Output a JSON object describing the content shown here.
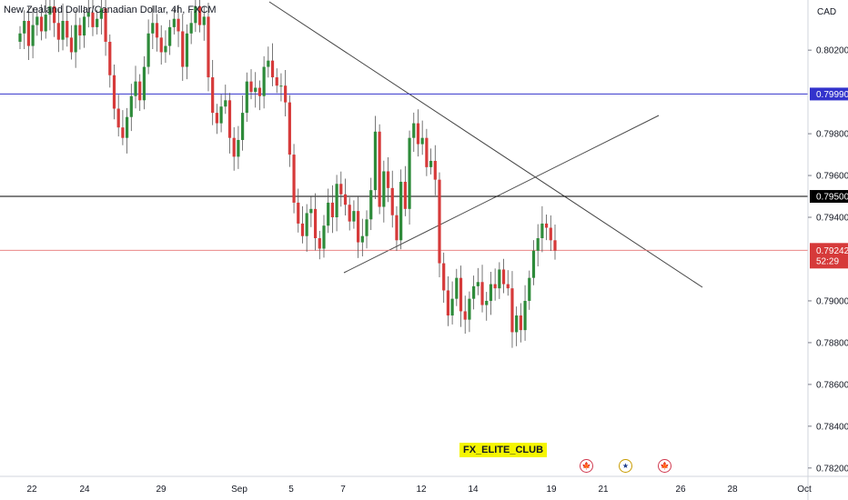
{
  "header": {
    "title": "New Zealand Dollar/Canadian Dollar, 4h, FXCM"
  },
  "watermark": "FX_ELITE_CLUB",
  "events": [
    {
      "name": "canada-flag-event",
      "glyph": "🍁",
      "date": "Sep 20"
    },
    {
      "name": "australia-flag-event",
      "glyph": "★",
      "date": "Sep 21"
    },
    {
      "name": "canada-flag-event-2",
      "glyph": "🍁",
      "date": "Sep 23"
    }
  ],
  "colors": {
    "up": "#26a69a",
    "up_body": "#2e8b3a",
    "down": "#d63a3a",
    "resistance_line": "#3333cc",
    "support_line": "#000000",
    "price_line": "#e57373",
    "trendline": "#444444"
  },
  "chart_data": {
    "type": "candlestick",
    "symbol": "New Zealand Dollar/Canadian Dollar",
    "interval": "4h",
    "source": "FXCM",
    "currency": "CAD",
    "y_ticks": [
      "0.80200",
      "0.79800",
      "0.79600",
      "0.79400",
      "0.79000",
      "0.78800",
      "0.78600",
      "0.78400",
      "0.78200"
    ],
    "x_ticks": [
      "22",
      "24",
      "29",
      "Sep",
      "5",
      "7",
      "12",
      "14",
      "19",
      "21",
      "26",
      "28",
      "Oct"
    ],
    "ylim": [
      0.7816,
      0.8044
    ],
    "horizontal_levels": [
      {
        "label": "0.79990",
        "value": 0.7999,
        "color": "#3333cc"
      },
      {
        "label": "0.79500",
        "value": 0.795,
        "color": "#000000"
      }
    ],
    "last_price": {
      "label": "0.79242",
      "value": 0.79242,
      "countdown": "52:29"
    },
    "candles_close": [
      0.8028,
      0.8034,
      0.8022,
      0.8032,
      0.8036,
      0.8029,
      0.8037,
      0.8041,
      0.8033,
      0.8025,
      0.8034,
      0.8026,
      0.8019,
      0.8032,
      0.8027,
      0.8036,
      0.8038,
      0.8031,
      0.8035,
      0.804,
      0.8024,
      0.8008,
      0.7992,
      0.7983,
      0.7978,
      0.7988,
      0.7998,
      0.8005,
      0.7996,
      0.8012,
      0.8028,
      0.8033,
      0.8026,
      0.8019,
      0.8022,
      0.8031,
      0.8035,
      0.8029,
      0.8012,
      0.8028,
      0.8033,
      0.8041,
      0.8032,
      0.8036,
      0.8007,
      0.799,
      0.7985,
      0.7993,
      0.7996,
      0.7978,
      0.7969,
      0.7977,
      0.799,
      0.8005,
      0.8,
      0.8002,
      0.7998,
      0.8012,
      0.8015,
      0.8007,
      0.8003,
      0.8003,
      0.7995,
      0.797,
      0.7947,
      0.7937,
      0.7931,
      0.7942,
      0.7944,
      0.793,
      0.7925,
      0.7936,
      0.7947,
      0.794,
      0.7956,
      0.7951,
      0.7946,
      0.7938,
      0.7943,
      0.7928,
      0.7931,
      0.7939,
      0.7953,
      0.7981,
      0.7945,
      0.7962,
      0.7954,
      0.7941,
      0.7929,
      0.7957,
      0.7944,
      0.7978,
      0.7985,
      0.7975,
      0.7978,
      0.7964,
      0.7967,
      0.7958,
      0.7918,
      0.7905,
      0.7893,
      0.7901,
      0.7911,
      0.7895,
      0.7891,
      0.7901,
      0.7907,
      0.7909,
      0.7898,
      0.79,
      0.7908,
      0.7906,
      0.7915,
      0.7908,
      0.7906,
      0.7885,
      0.7893,
      0.7886,
      0.79,
      0.7911,
      0.7924,
      0.793,
      0.7937,
      0.7935,
      0.7929,
      0.7924
    ]
  }
}
